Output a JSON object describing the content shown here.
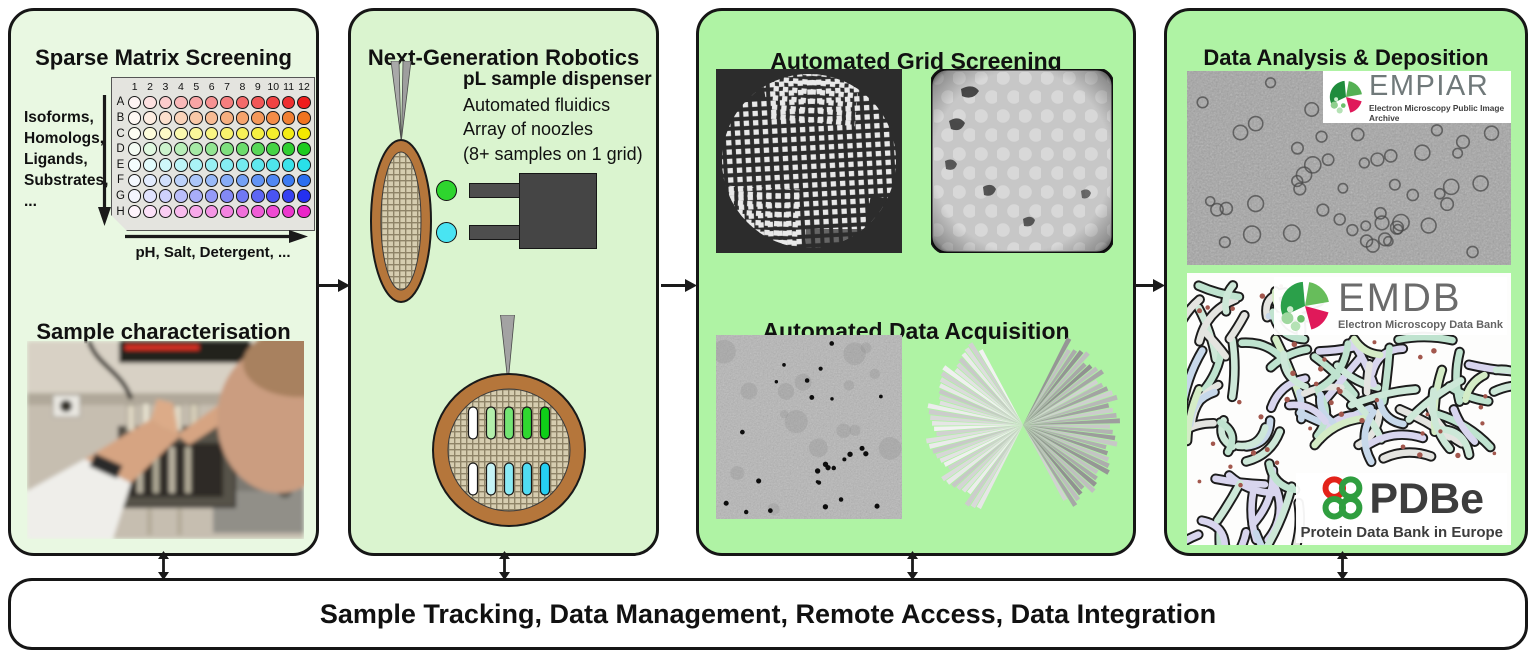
{
  "colors": {
    "panel1_bg": "#e9f8e2",
    "panel2_bg": "#daf4cf",
    "panel3_bg": "#aff3a4",
    "panel4_bg": "#aff3a4",
    "bar_from": "#eefaе9",
    "bar_to": "#9ef29b",
    "panel_border": "#161616",
    "plate_bg": "#e4e4df",
    "dispenser_gray": "#4e4e4e",
    "grid_rim": "#b5763b"
  },
  "panels": {
    "sparse": {
      "title": "Sparse Matrix Screening",
      "side_label": "Isoforms,\nHomologs,\nLigands,\nSubstrates,\n...",
      "axis_label": "pH, Salt, Detergent, ...",
      "subtitle": "Sample characterisation",
      "plate": {
        "columns": [
          "1",
          "2",
          "3",
          "4",
          "5",
          "6",
          "7",
          "8",
          "9",
          "10",
          "11",
          "12"
        ],
        "rows": [
          {
            "letter": "A",
            "color": "#ee1c1c"
          },
          {
            "letter": "B",
            "color": "#f07420"
          },
          {
            "letter": "C",
            "color": "#f2ea00"
          },
          {
            "letter": "D",
            "color": "#1ecb1e"
          },
          {
            "letter": "E",
            "color": "#29e0e8"
          },
          {
            "letter": "F",
            "color": "#2b6ff0"
          },
          {
            "letter": "G",
            "color": "#2430f0"
          },
          {
            "letter": "H",
            "color": "#ea25c8"
          }
        ]
      }
    },
    "robotics": {
      "title": "Next-Generation Robotics",
      "lines": [
        "pL sample dispenser",
        "Automated fluidics",
        "Array of noozles",
        "(8+ samples on 1 grid)"
      ],
      "droplet_colors": [
        "#2ed52e",
        "#49e4f2"
      ],
      "capsule_rows": [
        [
          "#ffffff",
          "#b4eeac",
          "#74e474",
          "#30d830",
          "#0fce18"
        ],
        [
          "#ffffff",
          "#c6f3f5",
          "#8aeaf4",
          "#50dcf2",
          "#25cff2"
        ]
      ]
    },
    "screening": {
      "title": "Automated Grid Screening",
      "subtitle": "Automated Data Acquisition"
    },
    "analysis": {
      "title": "Data Analysis & Deposition",
      "empiar": {
        "name": "EMPIAR",
        "tagline": "Electron Microscopy Public Image Archive"
      },
      "emdb": {
        "name": "EMDB",
        "tagline": "Electron Microscopy Data Bank"
      },
      "pdbe": {
        "name": "PDBe",
        "tagline": "Protein Data Bank in Europe"
      }
    }
  },
  "bottom_bar": {
    "label": "Sample Tracking, Data Management, Remote Access, Data Integration"
  }
}
